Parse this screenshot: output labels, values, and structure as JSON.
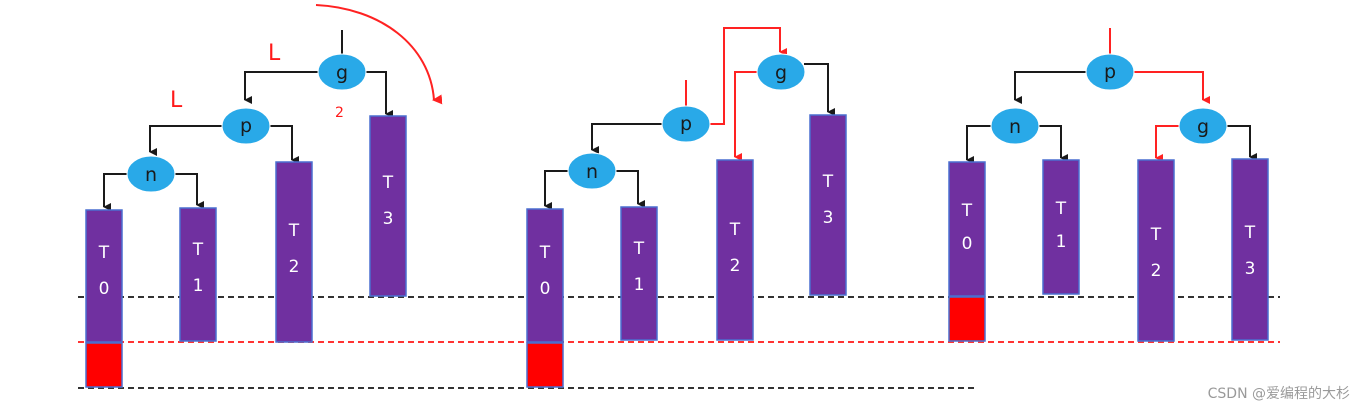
{
  "colors": {
    "node_fill": "#29a9e8",
    "subtree_fill": "#7030a0",
    "subtree_stroke": "#4a6fd0",
    "black_edge": "#1a1a1a",
    "red_edge": "#ff2222",
    "extra_height_block": "#ff0000",
    "dashed_black": "#333333",
    "dashed_red": "#ff3333"
  },
  "nodes": {
    "g": "g",
    "p": "p",
    "n": "n"
  },
  "subtrees": {
    "t0": "T\n0",
    "t1": "T\n1",
    "t2": "T\n2",
    "t3": "T\n3"
  },
  "annotations": {
    "outer_direction": "L",
    "inner_direction": "L",
    "balance_factor": "2"
  },
  "watermark": "CSDN @爱编程的大杉"
}
